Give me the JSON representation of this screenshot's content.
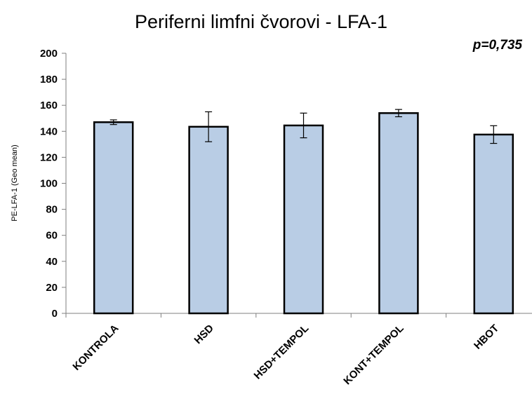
{
  "chart_data": {
    "type": "bar",
    "title": "Periferni limfni čvorovi - LFA-1",
    "annotation": "p=0,735",
    "ylabel": "PE-LFA-1 (Geo  mean)",
    "xlabel": "",
    "categories": [
      "KONTROLA",
      "HSD",
      "HSD+TEMPOL",
      "KONT+TEMPOL",
      "HBOT"
    ],
    "values": [
      147,
      143.5,
      144.5,
      154,
      137.5
    ],
    "error": [
      1.8,
      11.5,
      9.5,
      2.8,
      6.8
    ],
    "ylim": [
      0,
      200
    ],
    "yticks": [
      0,
      20,
      40,
      60,
      80,
      100,
      120,
      140,
      160,
      180,
      200
    ],
    "grid": false,
    "legend": "none",
    "colors": {
      "bar_fill": "#b9cde5",
      "bar_stroke": "#000000",
      "error_bar": "#000000",
      "axis": "#7f7f7f"
    }
  }
}
